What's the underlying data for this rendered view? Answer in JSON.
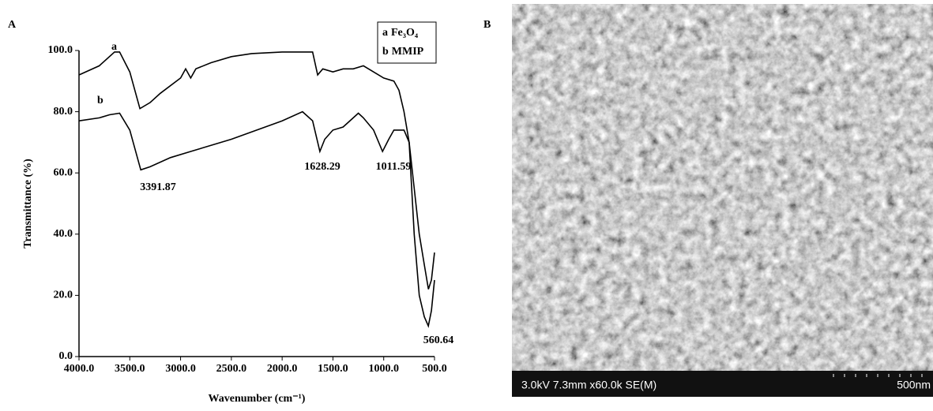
{
  "panel_labels": [
    "A",
    "B"
  ],
  "chart_data": {
    "type": "line",
    "xlabel": "Wavenumber (cm⁻¹)",
    "ylabel": "Transmittance (%)",
    "xlim": [
      4000,
      500
    ],
    "ylim": [
      0,
      100
    ],
    "xticks": [
      {
        "value": 4000,
        "label": "4000.0"
      },
      {
        "value": 3500,
        "label": "3500.0"
      },
      {
        "value": 3000,
        "label": "3000.0"
      },
      {
        "value": 2500,
        "label": "2500.0"
      },
      {
        "value": 2000,
        "label": "2000.0"
      },
      {
        "value": 1500,
        "label": "1500.0"
      },
      {
        "value": 1000,
        "label": "1000.0"
      },
      {
        "value": 500,
        "label": "500.0"
      }
    ],
    "yticks": [
      {
        "value": 0,
        "label": "0.0"
      },
      {
        "value": 20,
        "label": "20.0"
      },
      {
        "value": 40,
        "label": "40.0"
      },
      {
        "value": 60,
        "label": "60.0"
      },
      {
        "value": 80,
        "label": "80.0"
      },
      {
        "value": 100,
        "label": "100.0"
      }
    ],
    "series": [
      {
        "label": "a",
        "name": "Fe₃O₄",
        "color": "#000000",
        "x": [
          4000,
          3800,
          3650,
          3600,
          3500,
          3400,
          3300,
          3200,
          3000,
          2950,
          2900,
          2850,
          2700,
          2500,
          2300,
          2000,
          1700,
          1650,
          1600,
          1500,
          1400,
          1300,
          1200,
          1100,
          1000,
          900,
          850,
          800,
          750,
          700,
          650,
          600,
          560,
          530,
          500
        ],
        "values": [
          92,
          95,
          99.5,
          99.5,
          93,
          81,
          83,
          86,
          91,
          94,
          91,
          94,
          96,
          98,
          99,
          99.5,
          99.5,
          92,
          94,
          93,
          94,
          94,
          95,
          93,
          91,
          90,
          87,
          80,
          70,
          55,
          40,
          30,
          22,
          25,
          34
        ]
      },
      {
        "label": "b",
        "name": "MMIP",
        "color": "#000000",
        "x": [
          4000,
          3800,
          3700,
          3600,
          3500,
          3400,
          3391.87,
          3300,
          3100,
          2900,
          2500,
          2000,
          1800,
          1700,
          1628.29,
          1580,
          1500,
          1400,
          1250,
          1200,
          1100,
          1011.59,
          950,
          900,
          800,
          750,
          700,
          650,
          600,
          560.64,
          530,
          500
        ],
        "values": [
          77,
          78,
          79,
          79.5,
          74,
          62,
          61,
          62,
          65,
          67,
          71,
          77,
          80,
          77,
          67,
          71,
          74,
          75,
          79.5,
          78,
          74,
          67,
          71,
          74,
          74,
          70,
          40,
          20,
          13,
          10,
          15,
          25
        ]
      }
    ],
    "annotations": [
      "3391.87",
      "1628.29",
      "1011.59",
      "560.64"
    ]
  },
  "sem_image": {
    "info": "3.0kV 7.3mm x60.0k SE(M)",
    "scale_label": "500nm"
  }
}
